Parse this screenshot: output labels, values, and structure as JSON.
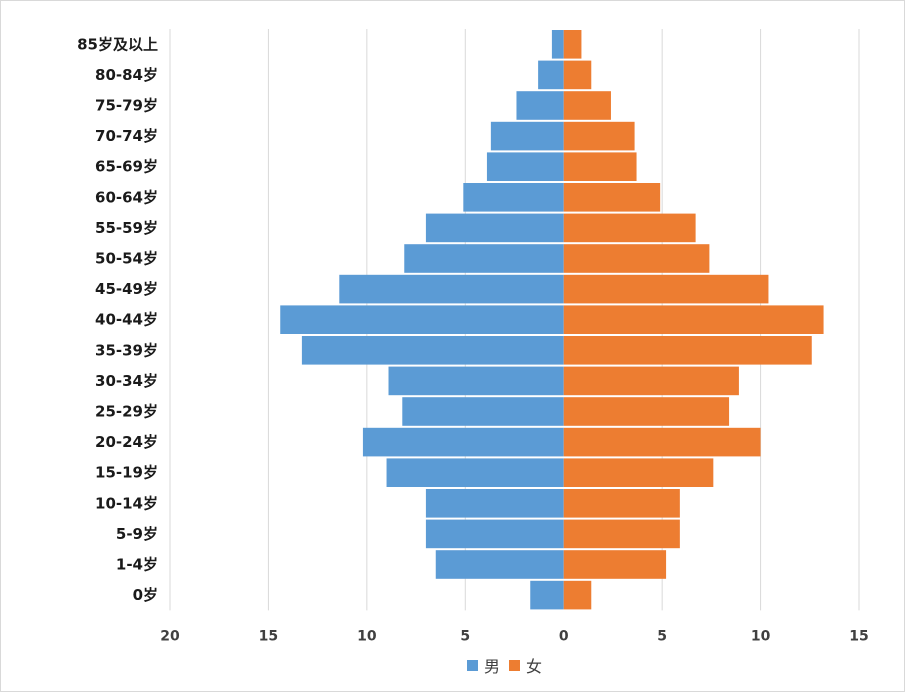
{
  "chart_data": {
    "type": "bar",
    "orientation": "horizontal",
    "subtype": "population-pyramid",
    "title": "",
    "xlabel": "",
    "ylabel": "",
    "xlim": [
      -20,
      15
    ],
    "xticks": [
      -20,
      -15,
      -10,
      -5,
      0,
      5,
      10,
      15
    ],
    "xtick_labels": [
      "20",
      "15",
      "10",
      "5",
      "0",
      "5",
      "10",
      "15"
    ],
    "grid": "vertical",
    "legend_position": "bottom",
    "categories": [
      "85岁及以上",
      "80-84岁",
      "75-79岁",
      "70-74岁",
      "65-69岁",
      "60-64岁",
      "55-59岁",
      "50-54岁",
      "45-49岁",
      "40-44岁",
      "35-39岁",
      "30-34岁",
      "25-29岁",
      "20-24岁",
      "15-19岁",
      "10-14岁",
      "5-9岁",
      "1-4岁",
      "0岁"
    ],
    "series": [
      {
        "name": "男",
        "color": "#5b9bd5",
        "values": [
          -0.6,
          -1.3,
          -2.4,
          -3.7,
          -3.9,
          -5.1,
          -7.0,
          -8.1,
          -11.4,
          -14.4,
          -13.3,
          -8.9,
          -8.2,
          -10.2,
          -9.0,
          -7.0,
          -7.0,
          -6.5,
          -1.7
        ]
      },
      {
        "name": "女",
        "color": "#ed7d31",
        "values": [
          0.9,
          1.4,
          2.4,
          3.6,
          3.7,
          4.9,
          6.7,
          7.4,
          10.4,
          13.2,
          12.6,
          8.9,
          8.4,
          10.0,
          7.6,
          5.9,
          5.9,
          5.2,
          1.4
        ]
      }
    ]
  }
}
